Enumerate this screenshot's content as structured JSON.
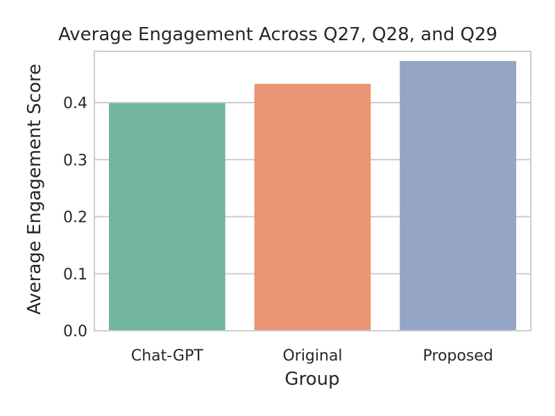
{
  "chart_data": {
    "type": "bar",
    "title": "Average Engagement Across Q27, Q28, and Q29",
    "xlabel": "Group",
    "ylabel": "Average Engagement Score",
    "categories": [
      "Chat-GPT",
      "Original",
      "Proposed"
    ],
    "values": [
      0.399,
      0.433,
      0.473
    ],
    "colors": [
      "#72b59f",
      "#e89673",
      "#95a5c5"
    ],
    "ylim": [
      0,
      0.49
    ],
    "yticks": [
      0.0,
      0.1,
      0.2,
      0.3,
      0.4
    ],
    "ytick_labels": [
      "0.0",
      "0.1",
      "0.2",
      "0.3",
      "0.4"
    ],
    "grid": "horizontal",
    "legend": "none"
  }
}
